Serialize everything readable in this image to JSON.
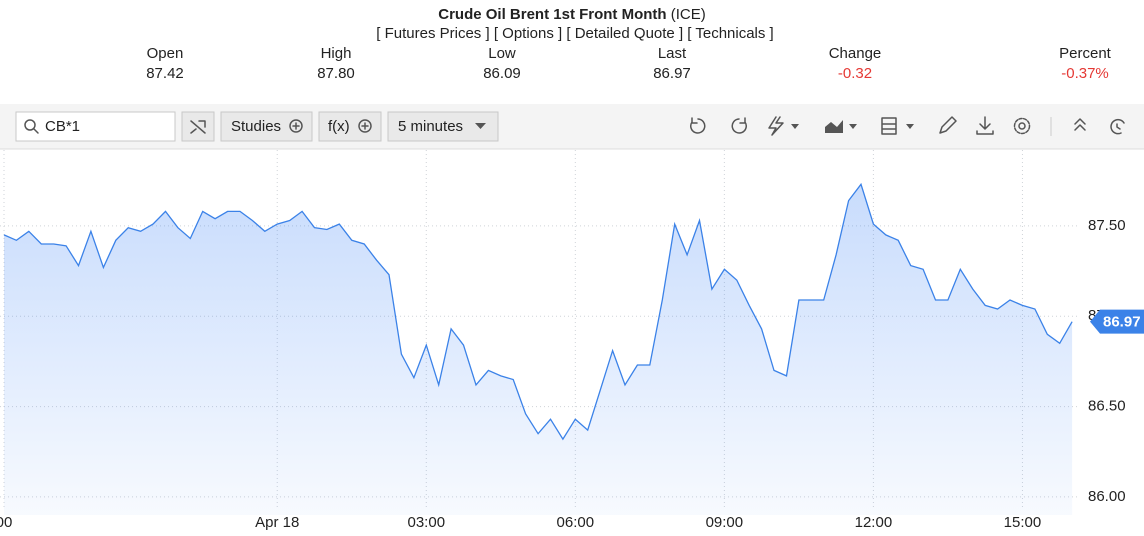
{
  "header": {
    "title": "Crude Oil Brent 1st Front Month",
    "exchange": "(ICE)",
    "links": [
      "[ Futures Prices ]",
      "[ Options ]",
      "[ Detailed Quote ]",
      "[ Technicals ]"
    ]
  },
  "quote": {
    "labels": [
      "Open",
      "High",
      "Low",
      "Last",
      "Change",
      "Percent"
    ],
    "values": [
      "87.42",
      "87.80",
      "86.09",
      "86.97",
      "-0.32",
      "-0.37%"
    ]
  },
  "toolbar": {
    "search": "CB*1",
    "buttons": [
      "Studies",
      "f(x)"
    ],
    "interval": "5 minutes"
  },
  "chart_data": {
    "type": "area",
    "color": "#3b82e8",
    "values": [
      87.45,
      87.42,
      87.47,
      87.4,
      87.4,
      87.39,
      87.28,
      87.47,
      87.27,
      87.42,
      87.49,
      87.47,
      87.51,
      87.58,
      87.49,
      87.43,
      87.58,
      87.54,
      87.58,
      87.58,
      87.53,
      87.47,
      87.51,
      87.53,
      87.58,
      87.49,
      87.48,
      87.51,
      87.42,
      87.4,
      87.31,
      87.23,
      86.79,
      86.66,
      86.84,
      86.62,
      86.93,
      86.84,
      86.62,
      86.7,
      86.67,
      86.65,
      86.46,
      86.35,
      86.43,
      86.32,
      86.43,
      86.37,
      86.59,
      86.81,
      86.62,
      86.73,
      86.73,
      87.09,
      87.51,
      87.34,
      87.53,
      87.15,
      87.26,
      87.2,
      87.06,
      86.93,
      86.7,
      86.67,
      87.09,
      87.09,
      87.09,
      87.34,
      87.64,
      87.73,
      87.51,
      87.45,
      87.42,
      87.28,
      87.26,
      87.09,
      87.09,
      87.26,
      87.15,
      87.06,
      87.04,
      87.09,
      87.06,
      87.04,
      86.9,
      86.85,
      86.97
    ],
    "xticks": [
      {
        "value": 0,
        "label": "00"
      },
      {
        "value": 22,
        "label": "Apr 18"
      },
      {
        "value": 34,
        "label": "03:00"
      },
      {
        "value": 46,
        "label": "06:00"
      },
      {
        "value": 58,
        "label": "09:00"
      },
      {
        "value": 70,
        "label": "12:00"
      },
      {
        "value": 82,
        "label": "15:00"
      }
    ],
    "ylim": [
      85.9,
      87.92
    ],
    "yticks": [
      {
        "value": 86,
        "label": "86.00"
      },
      {
        "value": 86.5,
        "label": "86.50"
      },
      {
        "value": 87,
        "label": "87.00"
      },
      {
        "value": 87.5,
        "label": "87.50"
      }
    ],
    "grid": true
  }
}
